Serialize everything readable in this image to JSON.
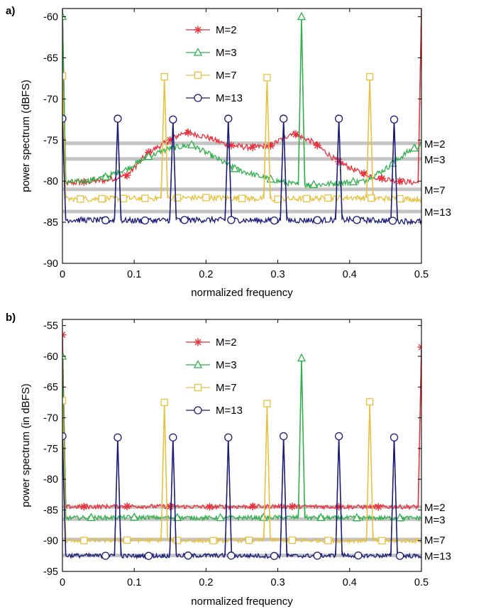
{
  "chart_data": [
    {
      "type": "line",
      "panel": "a)",
      "xlabel": "normalized frequency",
      "ylabel": "power spectrum (dBFS)",
      "xlim": [
        0,
        0.5
      ],
      "ylim": [
        -90,
        -59
      ],
      "xticks": [
        0,
        0.1,
        0.2,
        0.3,
        0.4,
        0.5
      ],
      "xtick_labels": [
        "0",
        "0.1",
        "0.2",
        "0.3",
        "0.4",
        "0.5"
      ],
      "yticks": [
        -90,
        -85,
        -80,
        -75,
        -70,
        -65,
        -60
      ],
      "ytick_labels": [
        "-90",
        "-85",
        "-80",
        "-75",
        "-70",
        "-65",
        "-60"
      ],
      "grid": false,
      "legend_position": "top-center",
      "series": [
        {
          "name": "M=2",
          "color": "#e8303a",
          "marker": "star",
          "floor": [
            [
              0.0,
              -80.3
            ],
            [
              0.03,
              -80.1
            ],
            [
              0.06,
              -79.9
            ],
            [
              0.09,
              -79.3
            ],
            [
              0.12,
              -76.5
            ],
            [
              0.15,
              -75.0
            ],
            [
              0.17,
              -74.0
            ],
            [
              0.2,
              -74.6
            ],
            [
              0.23,
              -75.6
            ],
            [
              0.26,
              -75.9
            ],
            [
              0.29,
              -75.7
            ],
            [
              0.32,
              -74.1
            ],
            [
              0.35,
              -75.3
            ],
            [
              0.38,
              -77.4
            ],
            [
              0.41,
              -78.8
            ],
            [
              0.44,
              -79.6
            ],
            [
              0.47,
              -80.0
            ],
            [
              0.495,
              -80.2
            ]
          ],
          "markers_x": [
            0.03,
            0.09,
            0.12,
            0.15,
            0.175,
            0.235,
            0.265,
            0.29,
            0.325,
            0.355,
            0.385,
            0.42,
            0.445,
            0.47
          ],
          "spikes": [
            [
              0.0,
              -59.0
            ],
            [
              0.5,
              -59.0
            ]
          ]
        },
        {
          "name": "M=3",
          "color": "#2fb04a",
          "marker": "triangle",
          "floor": [
            [
              0.0,
              -80.2
            ],
            [
              0.03,
              -80.0
            ],
            [
              0.06,
              -79.5
            ],
            [
              0.09,
              -78.5
            ],
            [
              0.12,
              -77.0
            ],
            [
              0.15,
              -76.0
            ],
            [
              0.18,
              -75.6
            ],
            [
              0.21,
              -77.0
            ],
            [
              0.24,
              -78.5
            ],
            [
              0.27,
              -79.3
            ],
            [
              0.3,
              -80.0
            ],
            [
              0.33,
              -80.5
            ],
            [
              0.36,
              -80.4
            ],
            [
              0.39,
              -80.2
            ],
            [
              0.42,
              -80.0
            ],
            [
              0.45,
              -78.5
            ],
            [
              0.48,
              -76.5
            ],
            [
              0.5,
              -75.5
            ]
          ],
          "markers_x": [
            0.06,
            0.12,
            0.18,
            0.24,
            0.29,
            0.35,
            0.405,
            0.46,
            0.49
          ],
          "spikes": [
            [
              0.0,
              -60.0
            ],
            [
              0.333,
              -60.0
            ]
          ],
          "spike_markers": [
            [
              0.0,
              -60.0
            ],
            [
              0.333,
              -60.0
            ]
          ]
        },
        {
          "name": "M=7",
          "color": "#e8c040",
          "marker": "square",
          "floor": [
            [
              0.0,
              -82.2
            ],
            [
              0.1,
              -82.1
            ],
            [
              0.2,
              -82.0
            ],
            [
              0.3,
              -82.2
            ],
            [
              0.4,
              -82.0
            ],
            [
              0.5,
              -82.2
            ]
          ],
          "markers_x": [
            0.025,
            0.055,
            0.085,
            0.115,
            0.16,
            0.2,
            0.25,
            0.3,
            0.34,
            0.37,
            0.43,
            0.47
          ],
          "spikes": [
            [
              0.0,
              -67.2
            ],
            [
              0.142,
              -67.3
            ],
            [
              0.285,
              -67.4
            ],
            [
              0.428,
              -67.3
            ]
          ],
          "spike_markers": [
            [
              0.0,
              -67.2
            ],
            [
              0.142,
              -67.3
            ],
            [
              0.285,
              -67.4
            ],
            [
              0.428,
              -67.3
            ]
          ]
        },
        {
          "name": "M=13",
          "color": "#1a1a7a",
          "marker": "circle",
          "floor": [
            [
              0.0,
              -84.7
            ],
            [
              0.1,
              -84.8
            ],
            [
              0.2,
              -84.7
            ],
            [
              0.3,
              -84.8
            ],
            [
              0.4,
              -84.7
            ],
            [
              0.5,
              -84.9
            ]
          ],
          "markers_x": [
            0.06,
            0.115,
            0.17,
            0.235,
            0.295,
            0.355,
            0.41,
            0.46
          ],
          "spikes": [
            [
              0.0,
              -72.4
            ],
            [
              0.077,
              -72.4
            ],
            [
              0.154,
              -72.5
            ],
            [
              0.231,
              -72.4
            ],
            [
              0.308,
              -72.4
            ],
            [
              0.385,
              -72.4
            ],
            [
              0.462,
              -72.5
            ]
          ],
          "spike_markers": [
            [
              0.0,
              -72.4
            ],
            [
              0.077,
              -72.4
            ],
            [
              0.154,
              -72.5
            ],
            [
              0.231,
              -72.4
            ],
            [
              0.308,
              -72.4
            ],
            [
              0.385,
              -72.4
            ],
            [
              0.462,
              -72.5
            ]
          ]
        }
      ],
      "reference_lines": [
        {
          "label": "M=2",
          "y": -75.4
        },
        {
          "label": "M=3",
          "y": -77.3
        },
        {
          "label": "M=7",
          "y": -81.0
        },
        {
          "label": "M=13",
          "y": -83.7
        }
      ]
    },
    {
      "type": "line",
      "panel": "b)",
      "xlabel": "normalized frequency",
      "ylabel": "power spectrum (in dBFS)",
      "xlim": [
        0,
        0.5
      ],
      "ylim": [
        -95,
        -54
      ],
      "xticks": [
        0,
        0.1,
        0.2,
        0.3,
        0.4,
        0.5
      ],
      "xtick_labels": [
        "0",
        "0.1",
        "0.2",
        "0.3",
        "0.4",
        "0.5"
      ],
      "yticks": [
        -95,
        -90,
        -85,
        -80,
        -75,
        -70,
        -65,
        -60,
        -55
      ],
      "ytick_labels": [
        "-95",
        "-90",
        "-85",
        "-80",
        "-75",
        "-70",
        "-65",
        "-60",
        "-55"
      ],
      "grid": false,
      "legend_position": "top-center",
      "series": [
        {
          "name": "M=2",
          "color": "#e8303a",
          "marker": "star",
          "floor": [
            [
              0.0,
              -84.5
            ],
            [
              0.1,
              -84.4
            ],
            [
              0.2,
              -84.5
            ],
            [
              0.3,
              -84.4
            ],
            [
              0.4,
              -84.5
            ],
            [
              0.5,
              -84.5
            ]
          ],
          "markers_x": [
            0.03,
            0.09,
            0.15,
            0.205,
            0.265,
            0.32,
            0.385,
            0.44
          ],
          "spikes": [
            [
              0.0,
              -56.5
            ],
            [
              0.5,
              -58.5
            ]
          ],
          "spike_markers": [
            [
              0.0,
              -56.5
            ],
            [
              0.5,
              -58.5
            ]
          ]
        },
        {
          "name": "M=3",
          "color": "#2fb04a",
          "marker": "triangle",
          "floor": [
            [
              0.0,
              -86.3
            ],
            [
              0.1,
              -86.2
            ],
            [
              0.2,
              -86.3
            ],
            [
              0.3,
              -86.2
            ],
            [
              0.4,
              -86.3
            ],
            [
              0.5,
              -86.3
            ]
          ],
          "markers_x": [
            0.04,
            0.1,
            0.16,
            0.22,
            0.28,
            0.36,
            0.41,
            0.47
          ],
          "spikes": [
            [
              0.0,
              -60.0
            ],
            [
              0.333,
              -60.3
            ]
          ],
          "spike_markers": [
            [
              0.0,
              -60.0
            ],
            [
              0.333,
              -60.3
            ]
          ]
        },
        {
          "name": "M=7",
          "color": "#e8c040",
          "marker": "square",
          "floor": [
            [
              0.0,
              -90.0
            ],
            [
              0.1,
              -89.9
            ],
            [
              0.2,
              -90.0
            ],
            [
              0.3,
              -89.9
            ],
            [
              0.4,
              -90.0
            ],
            [
              0.5,
              -90.0
            ]
          ],
          "markers_x": [
            0.03,
            0.09,
            0.16,
            0.21,
            0.26,
            0.32,
            0.37,
            0.445
          ],
          "spikes": [
            [
              0.0,
              -67.2
            ],
            [
              0.142,
              -67.5
            ],
            [
              0.285,
              -67.7
            ],
            [
              0.428,
              -67.4
            ]
          ],
          "spike_markers": [
            [
              0.0,
              -67.2
            ],
            [
              0.142,
              -67.5
            ],
            [
              0.285,
              -67.7
            ],
            [
              0.428,
              -67.4
            ]
          ]
        },
        {
          "name": "M=13",
          "color": "#1a1a7a",
          "marker": "circle",
          "floor": [
            [
              0.0,
              -92.4
            ],
            [
              0.1,
              -92.5
            ],
            [
              0.2,
              -92.4
            ],
            [
              0.3,
              -92.5
            ],
            [
              0.4,
              -92.4
            ],
            [
              0.5,
              -92.5
            ]
          ],
          "markers_x": [
            0.06,
            0.12,
            0.175,
            0.235,
            0.295,
            0.355,
            0.412,
            0.47
          ],
          "spikes": [
            [
              0.0,
              -73.0
            ],
            [
              0.077,
              -73.2
            ],
            [
              0.154,
              -73.2
            ],
            [
              0.231,
              -73.2
            ],
            [
              0.308,
              -73.0
            ],
            [
              0.385,
              -73.0
            ],
            [
              0.462,
              -73.2
            ]
          ],
          "spike_markers": [
            [
              0.0,
              -73.0
            ],
            [
              0.077,
              -73.2
            ],
            [
              0.154,
              -73.2
            ],
            [
              0.231,
              -73.2
            ],
            [
              0.308,
              -73.0
            ],
            [
              0.385,
              -73.0
            ],
            [
              0.462,
              -73.2
            ]
          ]
        }
      ],
      "reference_lines": [
        {
          "label": "M=2",
          "y": -84.5
        },
        {
          "label": "M=3",
          "y": -86.5
        },
        {
          "label": "M=7",
          "y": -89.8
        },
        {
          "label": "M=13",
          "y": -92.4
        }
      ]
    }
  ]
}
